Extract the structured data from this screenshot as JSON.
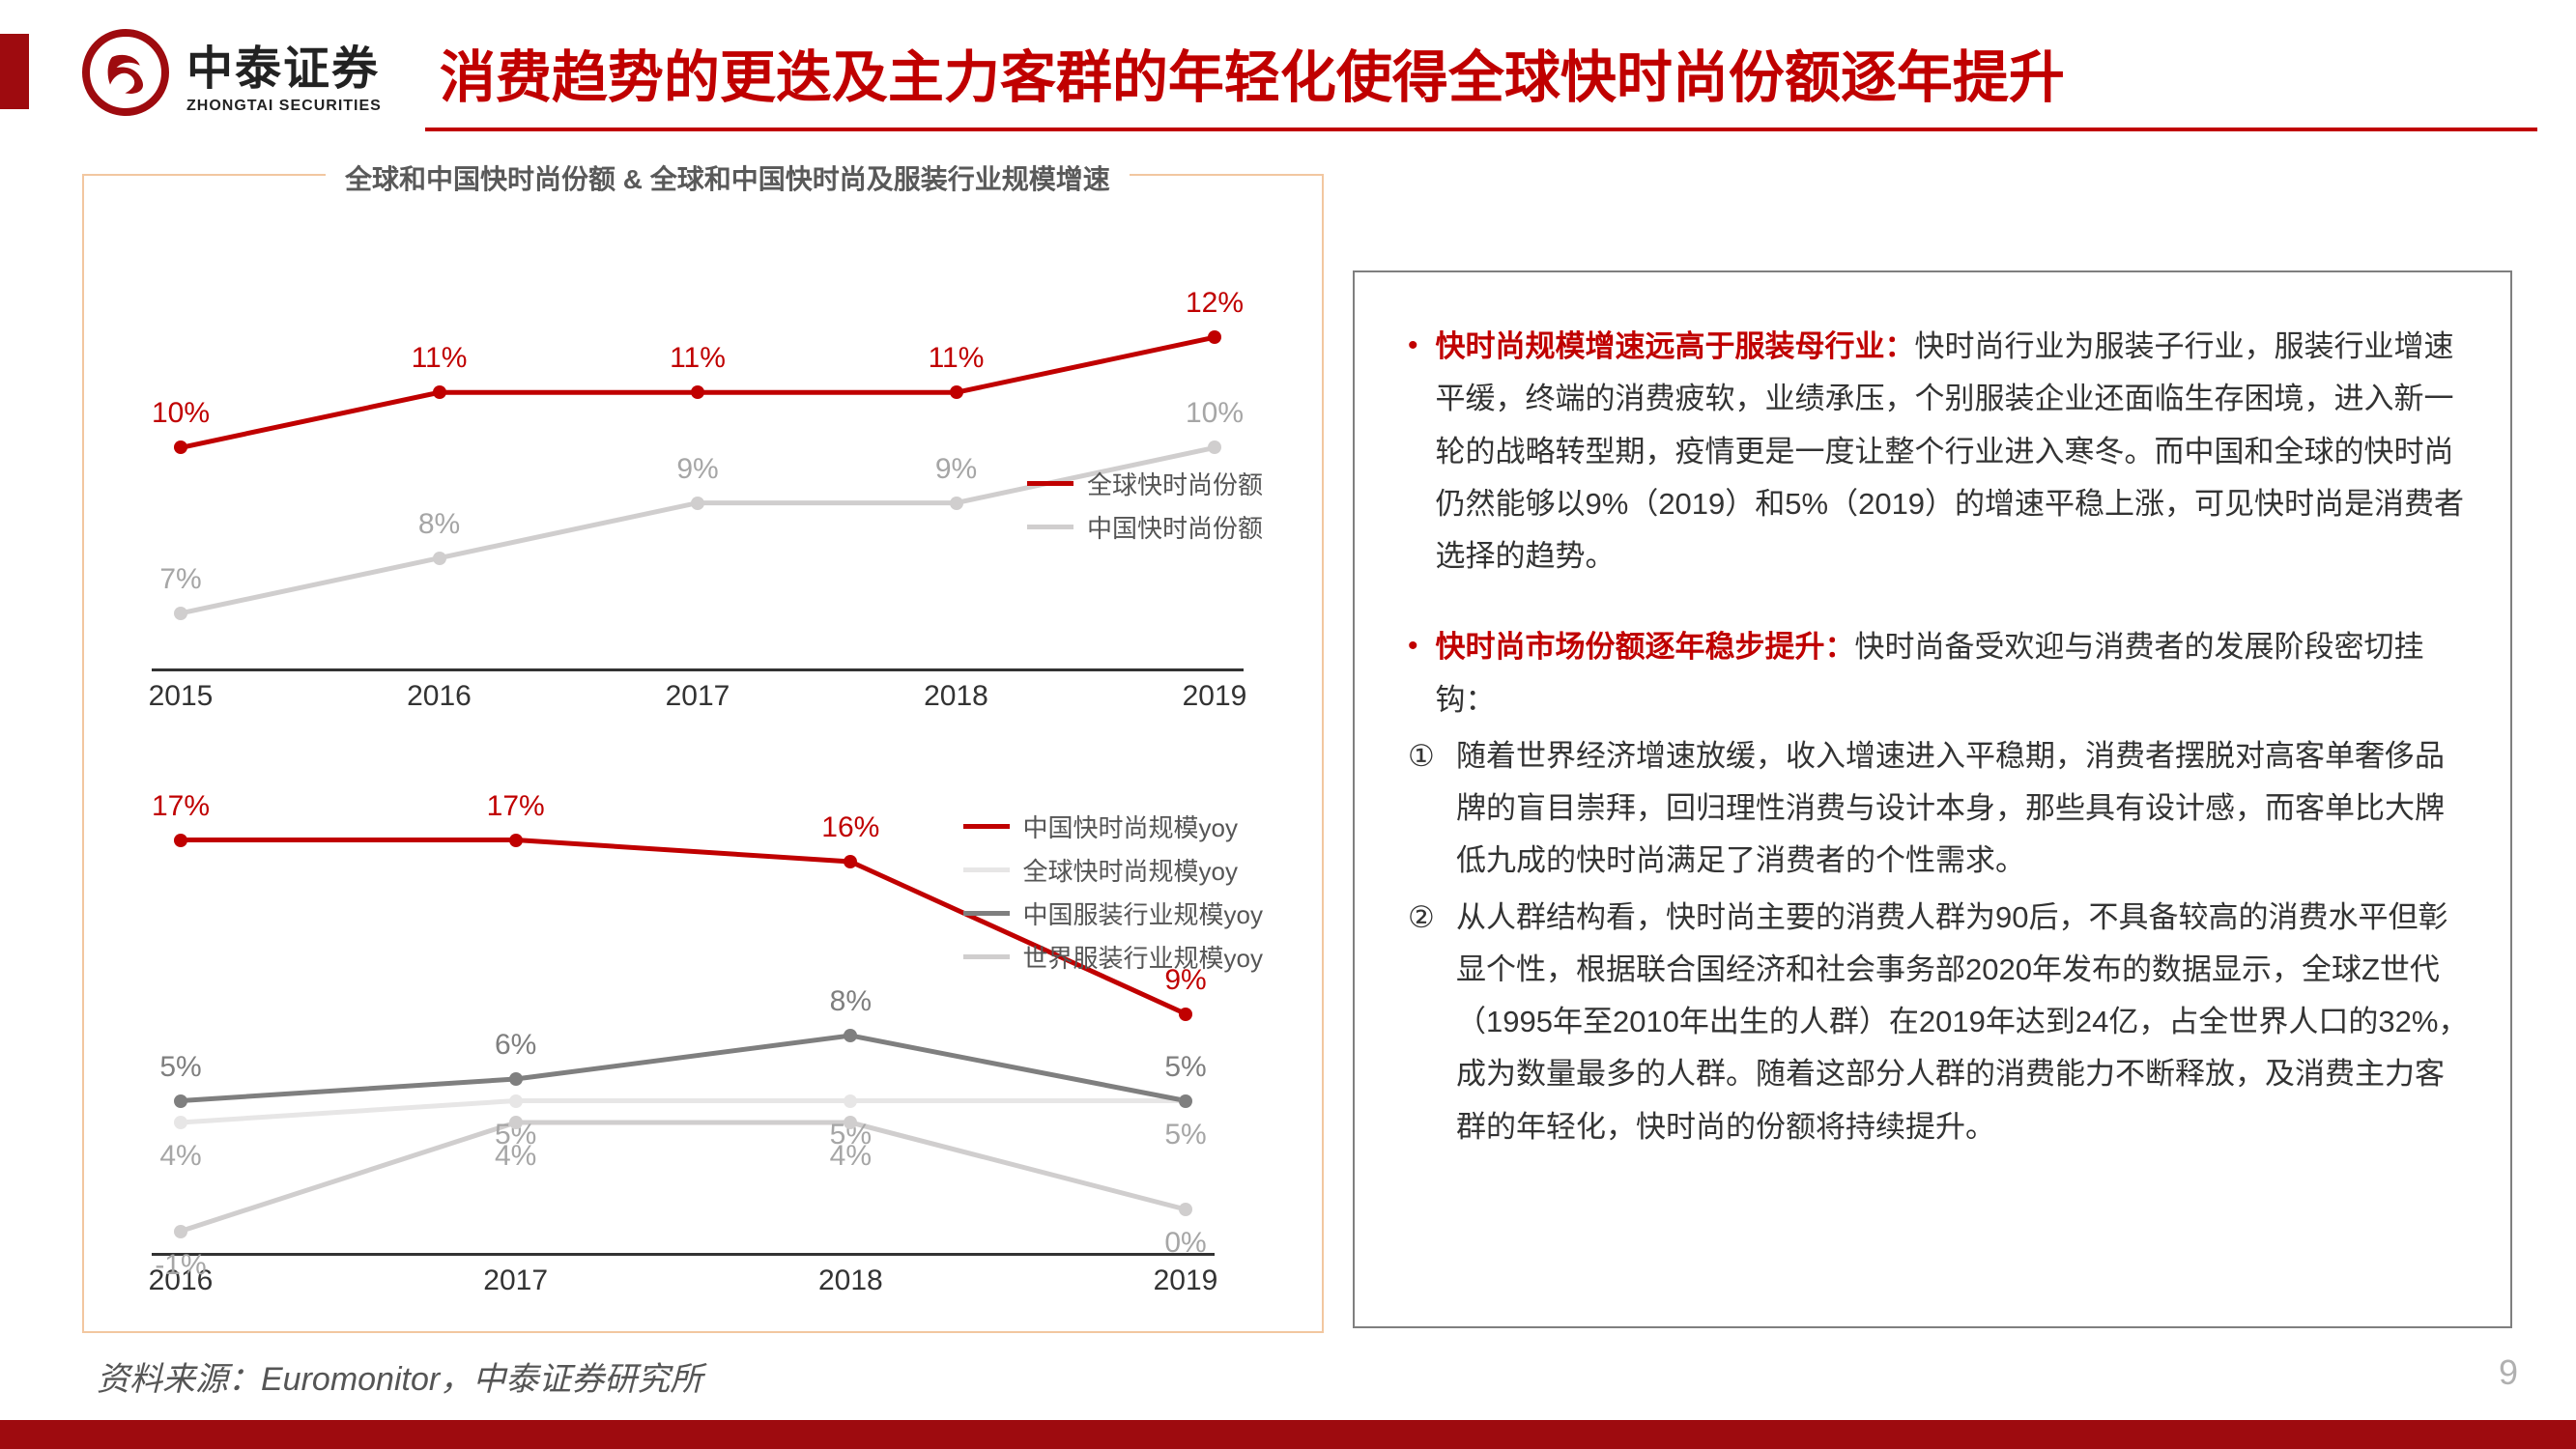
{
  "brand": {
    "cn": "中泰证券",
    "en": "ZHONGTAI SECURITIES"
  },
  "title": "消费趋势的更迭及主力客群的年轻化使得全球快时尚份额逐年提升",
  "chart_title": "全球和中国快时尚份额 & 全球和中国快时尚及服装行业规模增速",
  "colors": {
    "accent": "#9e0b0f",
    "title_red": "#c00000",
    "frame_orange": "#f2c7a0",
    "series_red": "#c00000",
    "series_lightgray": "#d0cece",
    "series_darkgray": "#7f7f7f",
    "series_verylightgray": "#e7e6e6",
    "text_gray": "#595959",
    "axis": "#333333"
  },
  "chart1": {
    "type": "line",
    "x_categories": [
      "2015",
      "2016",
      "2017",
      "2018",
      "2019"
    ],
    "ylim": [
      6,
      13
    ],
    "series": [
      {
        "name": "全球快时尚份额",
        "color": "#c00000",
        "labels": [
          "10%",
          "11%",
          "11%",
          "11%",
          "12%"
        ],
        "values": [
          10,
          11,
          11,
          11,
          12
        ]
      },
      {
        "name": "中国快时尚份额",
        "color": "#d0cece",
        "labels": [
          "7%",
          "8%",
          "9%",
          "9%",
          "10%"
        ],
        "values": [
          7,
          8,
          9,
          9,
          10
        ]
      }
    ],
    "label_fontsize": 30,
    "line_width": 5,
    "marker_size": 14
  },
  "chart2": {
    "type": "line",
    "x_categories": [
      "2016",
      "2017",
      "2018",
      "2019"
    ],
    "ylim": [
      -2,
      18
    ],
    "series": [
      {
        "name": "中国快时尚规模yoy",
        "color": "#c00000",
        "labels": [
          "17%",
          "17%",
          "16%",
          "9%"
        ],
        "values": [
          17,
          17,
          16,
          9
        ],
        "label_offset_y": -35
      },
      {
        "name": "全球快时尚规模yoy",
        "color": "#e7e6e6",
        "labels": [
          "4%",
          "5%",
          "5%",
          "5%"
        ],
        "values": [
          4,
          5,
          5,
          5
        ],
        "label_offset_y": 35
      },
      {
        "name": "中国服装行业规模yoy",
        "color": "#7f7f7f",
        "labels": [
          "5%",
          "6%",
          "8%",
          "5%"
        ],
        "values": [
          5,
          6,
          8,
          5
        ],
        "label_offset_y": -35
      },
      {
        "name": "世界服装行业规模yoy",
        "color": "#d0cece",
        "labels": [
          "-1%",
          "4%",
          "4%",
          "0%"
        ],
        "values": [
          -1,
          4,
          4,
          0
        ],
        "label_offset_y": 35
      }
    ],
    "label_fontsize": 30,
    "line_width": 5,
    "marker_size": 14
  },
  "textbox": {
    "b1_title": "快时尚规模增速远高于服装母行业：",
    "b1_body": "快时尚行业为服装子行业，服装行业增速平缓，终端的消费疲软，业绩承压，个别服装企业还面临生存困境，进入新一轮的战略转型期，疫情更是一度让整个行业进入寒冬。而中国和全球的快时尚仍然能够以9%（2019）和5%（2019）的增速平稳上涨，可见快时尚是消费者选择的趋势。",
    "b2_title": "快时尚市场份额逐年稳步提升：",
    "b2_body": "快时尚备受欢迎与消费者的发展阶段密切挂钩：",
    "sub1_num": "①",
    "sub1": "随着世界经济增速放缓，收入增速进入平稳期，消费者摆脱对高客单奢侈品牌的盲目崇拜，回归理性消费与设计本身，那些具有设计感，而客单比大牌低九成的快时尚满足了消费者的个性需求。",
    "sub2_num": "②",
    "sub2": "从人群结构看，快时尚主要的消费人群为90后，不具备较高的消费水平但彰显个性，根据联合国经济和社会事务部2020年发布的数据显示，全球Z世代（1995年至2010年出生的人群）在2019年达到24亿，占全世界人口的32%，成为数量最多的人群。随着这部分人群的消费能力不断释放，及消费主力客群的年轻化，快时尚的份额将持续提升。"
  },
  "source": "资料来源：Euromonitor，中泰证券研究所",
  "page_num": "9"
}
